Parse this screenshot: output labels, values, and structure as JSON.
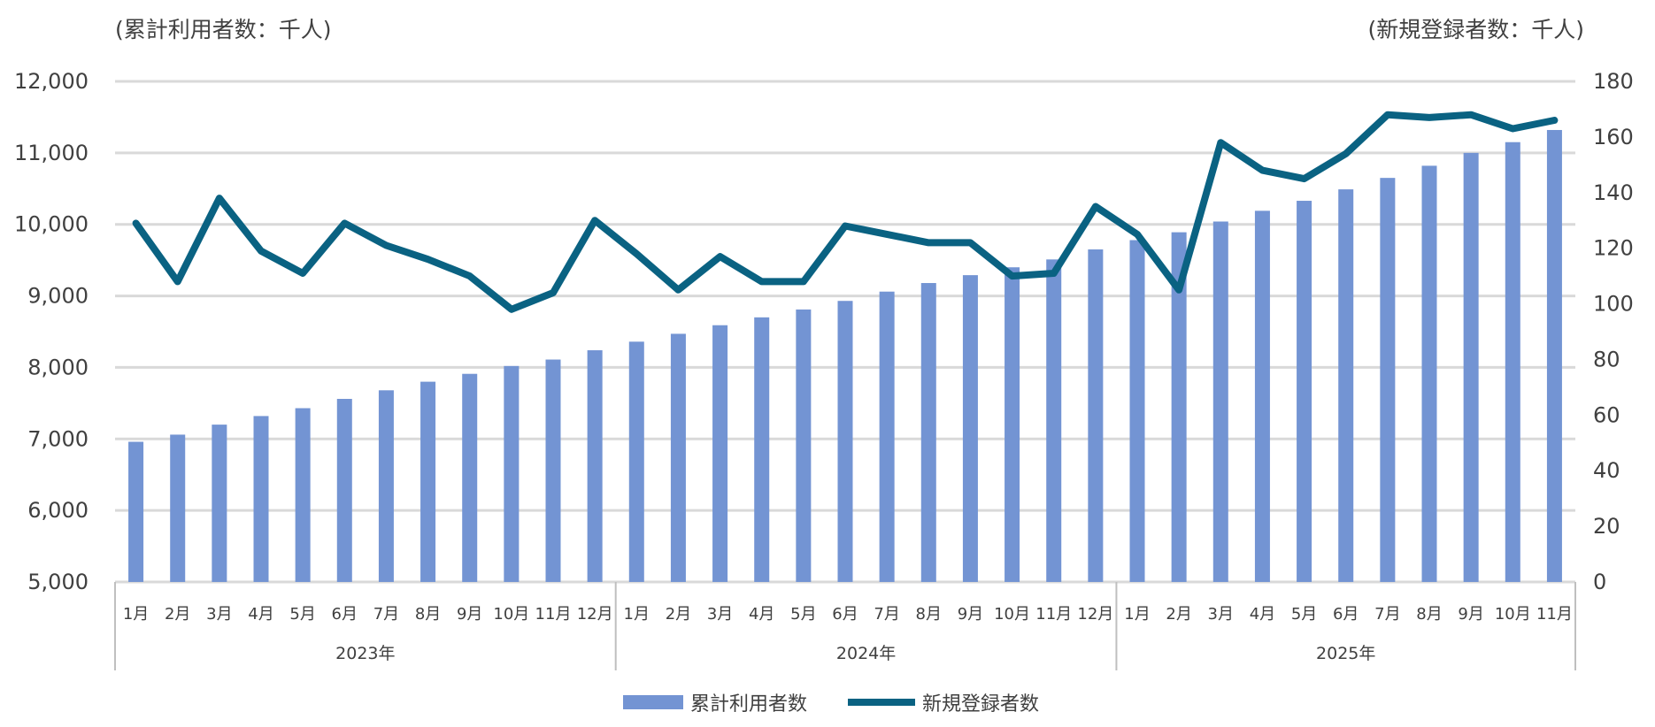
{
  "units": {
    "left": "(累計利用者数：千人)",
    "right": "(新規登録者数：千人)"
  },
  "legend": {
    "bars": "累計利用者数",
    "line": "新規登録者数"
  },
  "colors": {
    "bars": "#7394D3",
    "line": "#0A6282",
    "grid": "#D9D9D9",
    "text": "#404040"
  },
  "chart_data": {
    "type": "bar+line",
    "left_axis": {
      "min": 5000,
      "max": 12000,
      "step": 1000,
      "ticks": [
        "5,000",
        "6,000",
        "7,000",
        "8,000",
        "9,000",
        "10,000",
        "11,000",
        "12,000"
      ]
    },
    "right_axis": {
      "min": 0,
      "max": 180,
      "step": 20,
      "ticks": [
        "0",
        "20",
        "40",
        "60",
        "80",
        "100",
        "120",
        "140",
        "160",
        "180"
      ]
    },
    "years": [
      {
        "label": "2023年",
        "count": 12
      },
      {
        "label": "2024年",
        "count": 12
      },
      {
        "label": "2025年",
        "count": 11
      }
    ],
    "categories": [
      "1月",
      "2月",
      "3月",
      "4月",
      "5月",
      "6月",
      "7月",
      "8月",
      "9月",
      "10月",
      "11月",
      "12月",
      "1月",
      "2月",
      "3月",
      "4月",
      "5月",
      "6月",
      "7月",
      "8月",
      "9月",
      "10月",
      "11月",
      "12月",
      "1月",
      "2月",
      "3月",
      "4月",
      "5月",
      "6月",
      "7月",
      "8月",
      "9月",
      "10月",
      "11月"
    ],
    "series": [
      {
        "name": "累計利用者数",
        "type": "bar",
        "axis": "left",
        "values": [
          6960,
          7060,
          7200,
          7320,
          7430,
          7560,
          7680,
          7800,
          7910,
          8020,
          8110,
          8240,
          8360,
          8470,
          8590,
          8700,
          8810,
          8930,
          9060,
          9180,
          9290,
          9400,
          9510,
          9650,
          9780,
          9890,
          10040,
          10190,
          10330,
          10490,
          10650,
          10820,
          11000,
          11150,
          11320
        ]
      },
      {
        "name": "新規登録者数",
        "type": "line",
        "axis": "right",
        "values": [
          129,
          108,
          138,
          119,
          111,
          129,
          121,
          116,
          110,
          98,
          104,
          130,
          118,
          105,
          117,
          108,
          108,
          128,
          125,
          122,
          122,
          110,
          111,
          135,
          125,
          105,
          158,
          148,
          145,
          154,
          168,
          167,
          168,
          163,
          166
        ]
      }
    ]
  }
}
